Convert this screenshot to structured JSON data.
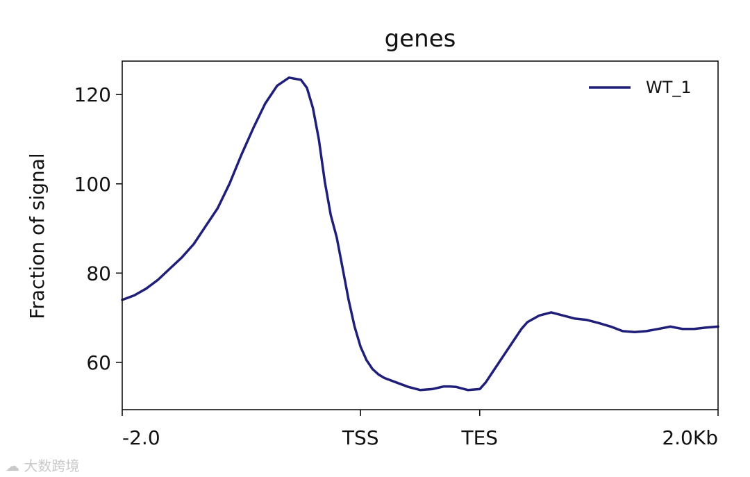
{
  "chart_data": {
    "type": "line",
    "title": "genes",
    "ylabel": "Fraction of signal",
    "xlabel": "",
    "x_ticks": [
      "-2.0",
      "TSS",
      "TES",
      "2.0Kb"
    ],
    "x_tick_positions": [
      0,
      2000,
      3000,
      5000
    ],
    "xlim": [
      0,
      5000
    ],
    "y_ticks": [
      60,
      80,
      100,
      120
    ],
    "ylim": [
      49.4,
      127.5
    ],
    "grid": false,
    "legend_position": "top-right",
    "series": [
      {
        "name": "WT_1",
        "color": "#1f1f7a",
        "x": [
          0,
          100,
          200,
          300,
          400,
          500,
          600,
          700,
          800,
          900,
          1000,
          1100,
          1200,
          1300,
          1400,
          1500,
          1550,
          1600,
          1650,
          1700,
          1750,
          1800,
          1850,
          1900,
          1950,
          2000,
          2050,
          2100,
          2150,
          2200,
          2300,
          2400,
          2500,
          2600,
          2700,
          2750,
          2800,
          2900,
          3000,
          3050,
          3100,
          3150,
          3200,
          3250,
          3300,
          3350,
          3400,
          3500,
          3600,
          3700,
          3800,
          3900,
          4000,
          4100,
          4200,
          4300,
          4400,
          4500,
          4600,
          4700,
          4800,
          4900,
          5000
        ],
        "values": [
          74.0,
          75.0,
          76.5,
          78.5,
          81.0,
          83.5,
          86.5,
          90.5,
          94.5,
          100.0,
          106.5,
          112.5,
          118.0,
          122.0,
          123.8,
          123.3,
          121.5,
          117.0,
          110.0,
          100.5,
          93.0,
          88.0,
          81.0,
          74.0,
          68.0,
          63.5,
          60.5,
          58.5,
          57.3,
          56.5,
          55.5,
          54.5,
          53.8,
          54.0,
          54.6,
          54.6,
          54.5,
          53.8,
          54.0,
          55.5,
          57.5,
          59.5,
          61.5,
          63.5,
          65.5,
          67.5,
          69.0,
          70.5,
          71.2,
          70.5,
          69.8,
          69.5,
          68.8,
          68.0,
          67.0,
          66.8,
          67.0,
          67.5,
          68.0,
          67.5,
          67.5,
          67.8,
          68.0
        ]
      }
    ]
  },
  "watermark": {
    "text": "大数跨境",
    "icon": "brand-logo-icon"
  }
}
